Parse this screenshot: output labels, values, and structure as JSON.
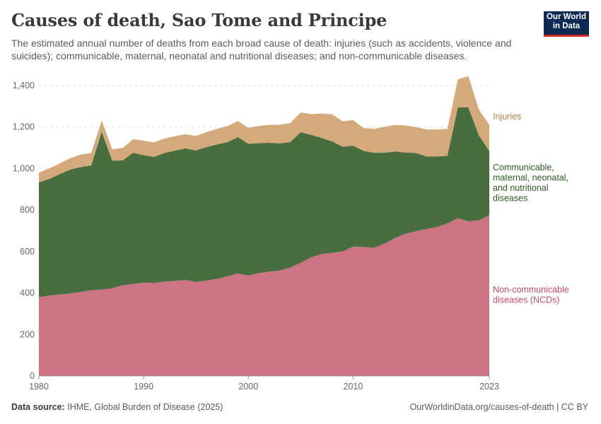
{
  "header": {
    "title": "Causes of death, Sao Tome and Principe",
    "subtitle": "The estimated annual number of deaths from each broad cause of death: injuries (such as accidents, violence and suicides); communicable, maternal, neonatal and nutritional diseases; and non-communicable diseases."
  },
  "logo": {
    "line1": "Our World",
    "line2": "in Data"
  },
  "footer": {
    "source_label": "Data source:",
    "source_text": "IHME, Global Burden of Disease (2025)",
    "url": "OurWorldinData.org/causes-of-death | CC BY"
  },
  "chart_data": {
    "type": "area",
    "stacked": true,
    "title": "Causes of death, Sao Tome and Principe",
    "x": [
      1980,
      1981,
      1982,
      1983,
      1984,
      1985,
      1986,
      1987,
      1988,
      1989,
      1990,
      1991,
      1992,
      1993,
      1994,
      1995,
      1996,
      1997,
      1998,
      1999,
      2000,
      2001,
      2002,
      2003,
      2004,
      2005,
      2006,
      2007,
      2008,
      2009,
      2010,
      2011,
      2012,
      2013,
      2014,
      2015,
      2016,
      2017,
      2018,
      2019,
      2020,
      2021,
      2022,
      2023
    ],
    "xticks": [
      "1980",
      "1990",
      "2000",
      "2010",
      "2023"
    ],
    "yticks": [
      "0",
      "200",
      "400",
      "600",
      "800",
      "1,000",
      "1,200",
      "1,400"
    ],
    "ylim": [
      0,
      1400
    ],
    "grid": true,
    "series": [
      {
        "name": "Non-communicable diseases (NCDs)",
        "label_lines": [
          "Non-communicable",
          "diseases (NCDs)"
        ],
        "color": "#cc7384",
        "text_color": "#c24a64",
        "values": [
          380,
          388,
          393,
          398,
          405,
          413,
          416,
          423,
          437,
          443,
          450,
          448,
          455,
          458,
          463,
          452,
          460,
          468,
          480,
          494,
          484,
          495,
          503,
          508,
          522,
          545,
          572,
          587,
          594,
          600,
          623,
          622,
          618,
          638,
          665,
          685,
          698,
          708,
          718,
          735,
          760,
          745,
          750,
          775
        ]
      },
      {
        "name": "Communicable, maternal, neonatal, and nutritional diseases",
        "label_lines": [
          "Communicable,",
          "maternal, neonatal,",
          "and nutritional",
          "diseases"
        ],
        "color": "#486d3f",
        "text_color": "#2d5a22",
        "values": [
          553,
          562,
          580,
          597,
          602,
          602,
          761,
          615,
          602,
          633,
          614,
          608,
          620,
          628,
          634,
          635,
          643,
          648,
          647,
          657,
          635,
          627,
          621,
          613,
          605,
          630,
          590,
          560,
          537,
          505,
          487,
          463,
          458,
          438,
          417,
          392,
          377,
          350,
          340,
          326,
          535,
          550,
          410,
          310
        ]
      },
      {
        "name": "Injuries",
        "label_lines": [
          "Injuries"
        ],
        "color": "#d4aa7c",
        "text_color": "#b27d48",
        "values": [
          47,
          51,
          52,
          55,
          60,
          60,
          55,
          55,
          60,
          65,
          70,
          70,
          70,
          70,
          68,
          70,
          72,
          75,
          77,
          78,
          77,
          83,
          86,
          90,
          92,
          95,
          100,
          118,
          130,
          122,
          123,
          110,
          115,
          125,
          128,
          130,
          125,
          130,
          130,
          130,
          135,
          150,
          125,
          125
        ]
      }
    ]
  }
}
